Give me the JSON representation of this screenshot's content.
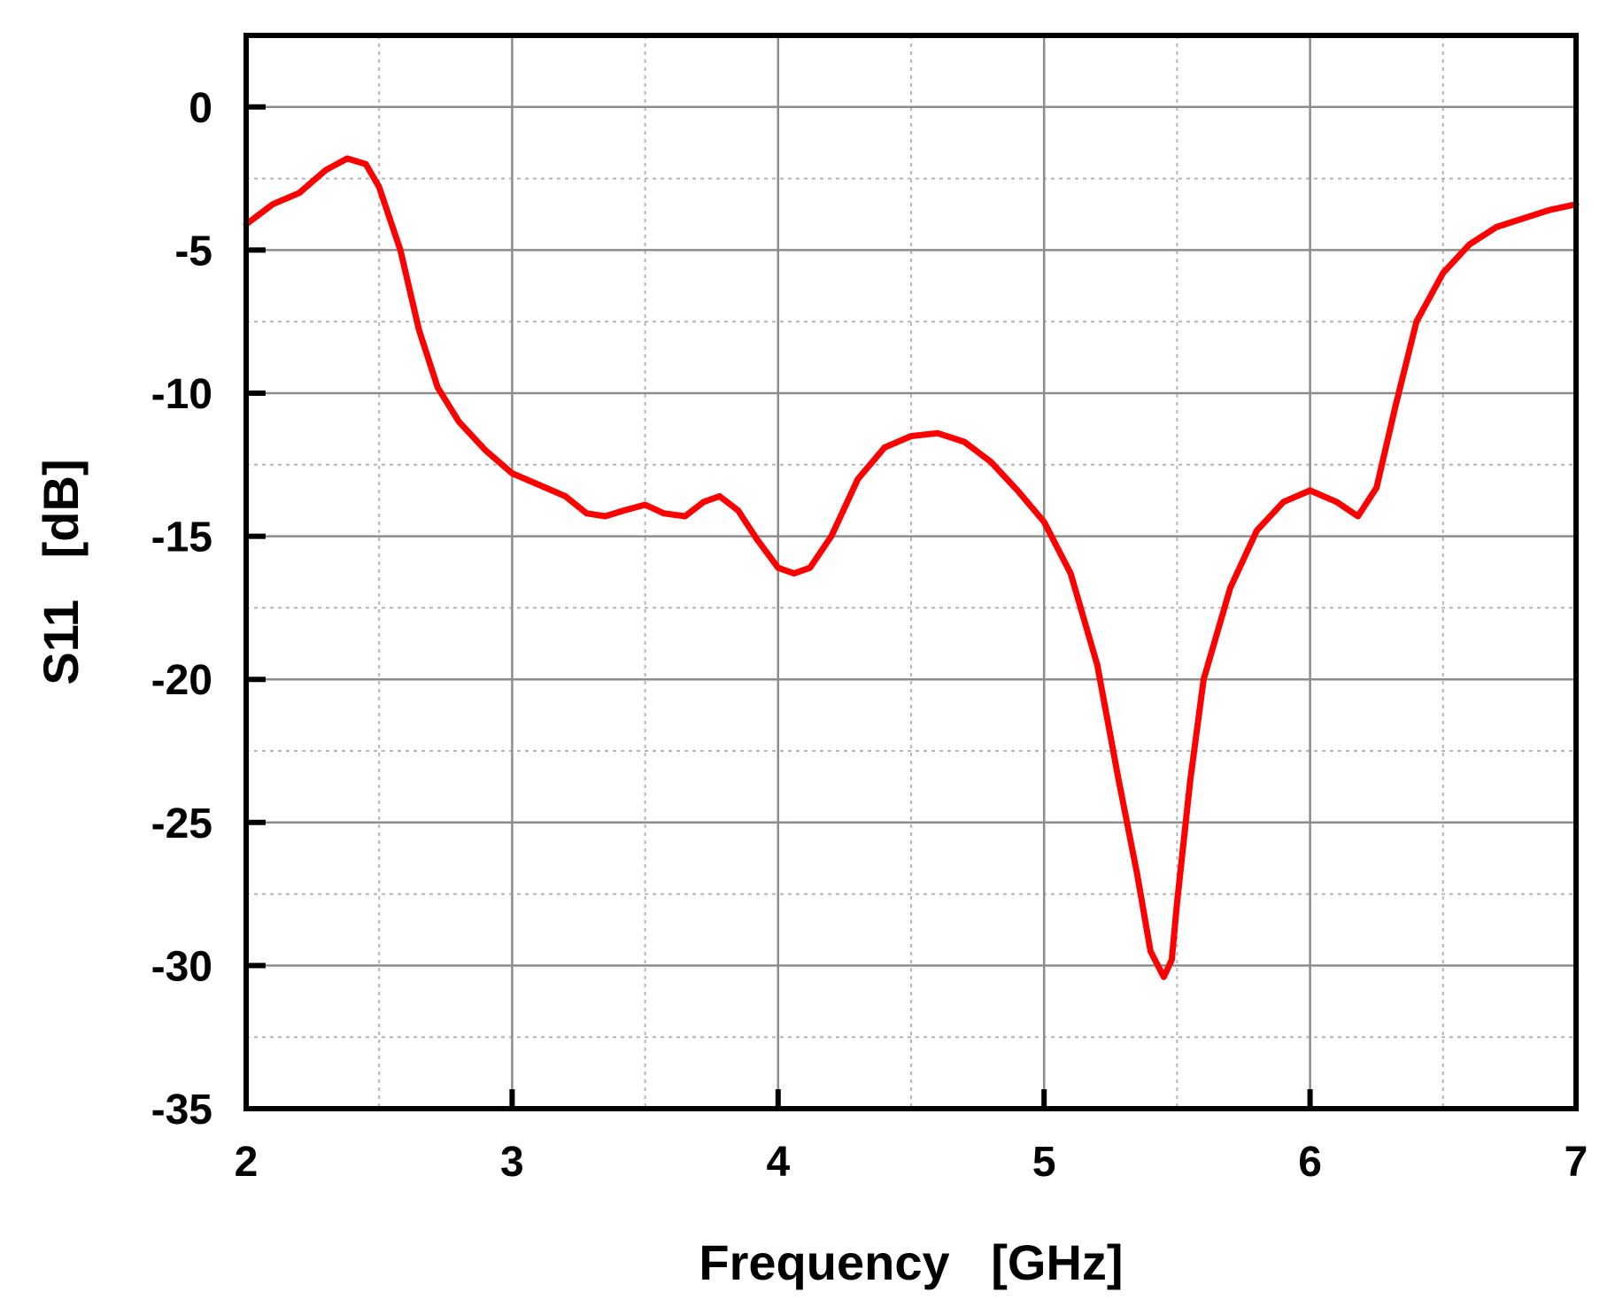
{
  "chart_data": {
    "type": "line",
    "xlabel": "Frequency   [GHz]",
    "ylabel": "S11   [dB]",
    "xlim": [
      2,
      7
    ],
    "ylim": [
      -35,
      2.5
    ],
    "x_ticks": [
      2,
      3,
      4,
      5,
      6,
      7
    ],
    "y_ticks": [
      0,
      -5,
      -10,
      -15,
      -20,
      -25,
      -30,
      -35
    ],
    "grid": true,
    "line_color": "#ff0000",
    "series": [
      {
        "x": [
          2.0,
          2.1,
          2.2,
          2.3,
          2.38,
          2.45,
          2.5,
          2.58,
          2.65,
          2.72,
          2.8,
          2.9,
          3.0,
          3.1,
          3.2,
          3.28,
          3.35,
          3.42,
          3.5,
          3.57,
          3.65,
          3.72,
          3.78,
          3.85,
          3.92,
          4.0,
          4.06,
          4.12,
          4.2,
          4.3,
          4.4,
          4.5,
          4.6,
          4.7,
          4.8,
          4.9,
          5.0,
          5.1,
          5.2,
          5.28,
          5.35,
          5.4,
          5.45,
          5.48,
          5.5,
          5.55,
          5.6,
          5.7,
          5.8,
          5.9,
          6.0,
          6.1,
          6.18,
          6.25,
          6.32,
          6.4,
          6.5,
          6.6,
          6.7,
          6.8,
          6.9,
          7.0
        ],
        "y": [
          -4.1,
          -3.4,
          -3.0,
          -2.2,
          -1.8,
          -2.0,
          -2.8,
          -5.0,
          -7.8,
          -9.8,
          -11.0,
          -12.0,
          -12.8,
          -13.2,
          -13.6,
          -14.2,
          -14.3,
          -14.1,
          -13.9,
          -14.2,
          -14.3,
          -13.8,
          -13.6,
          -14.1,
          -15.1,
          -16.1,
          -16.3,
          -16.1,
          -15.0,
          -13.0,
          -11.9,
          -11.5,
          -11.4,
          -11.7,
          -12.4,
          -13.4,
          -14.5,
          -16.3,
          -19.5,
          -23.5,
          -26.8,
          -29.5,
          -30.4,
          -29.8,
          -27.8,
          -23.5,
          -20.0,
          -16.8,
          -14.8,
          -13.8,
          -13.4,
          -13.8,
          -14.3,
          -13.3,
          -10.5,
          -7.5,
          -5.8,
          -4.8,
          -4.2,
          -3.9,
          -3.6,
          -3.4
        ]
      }
    ]
  }
}
